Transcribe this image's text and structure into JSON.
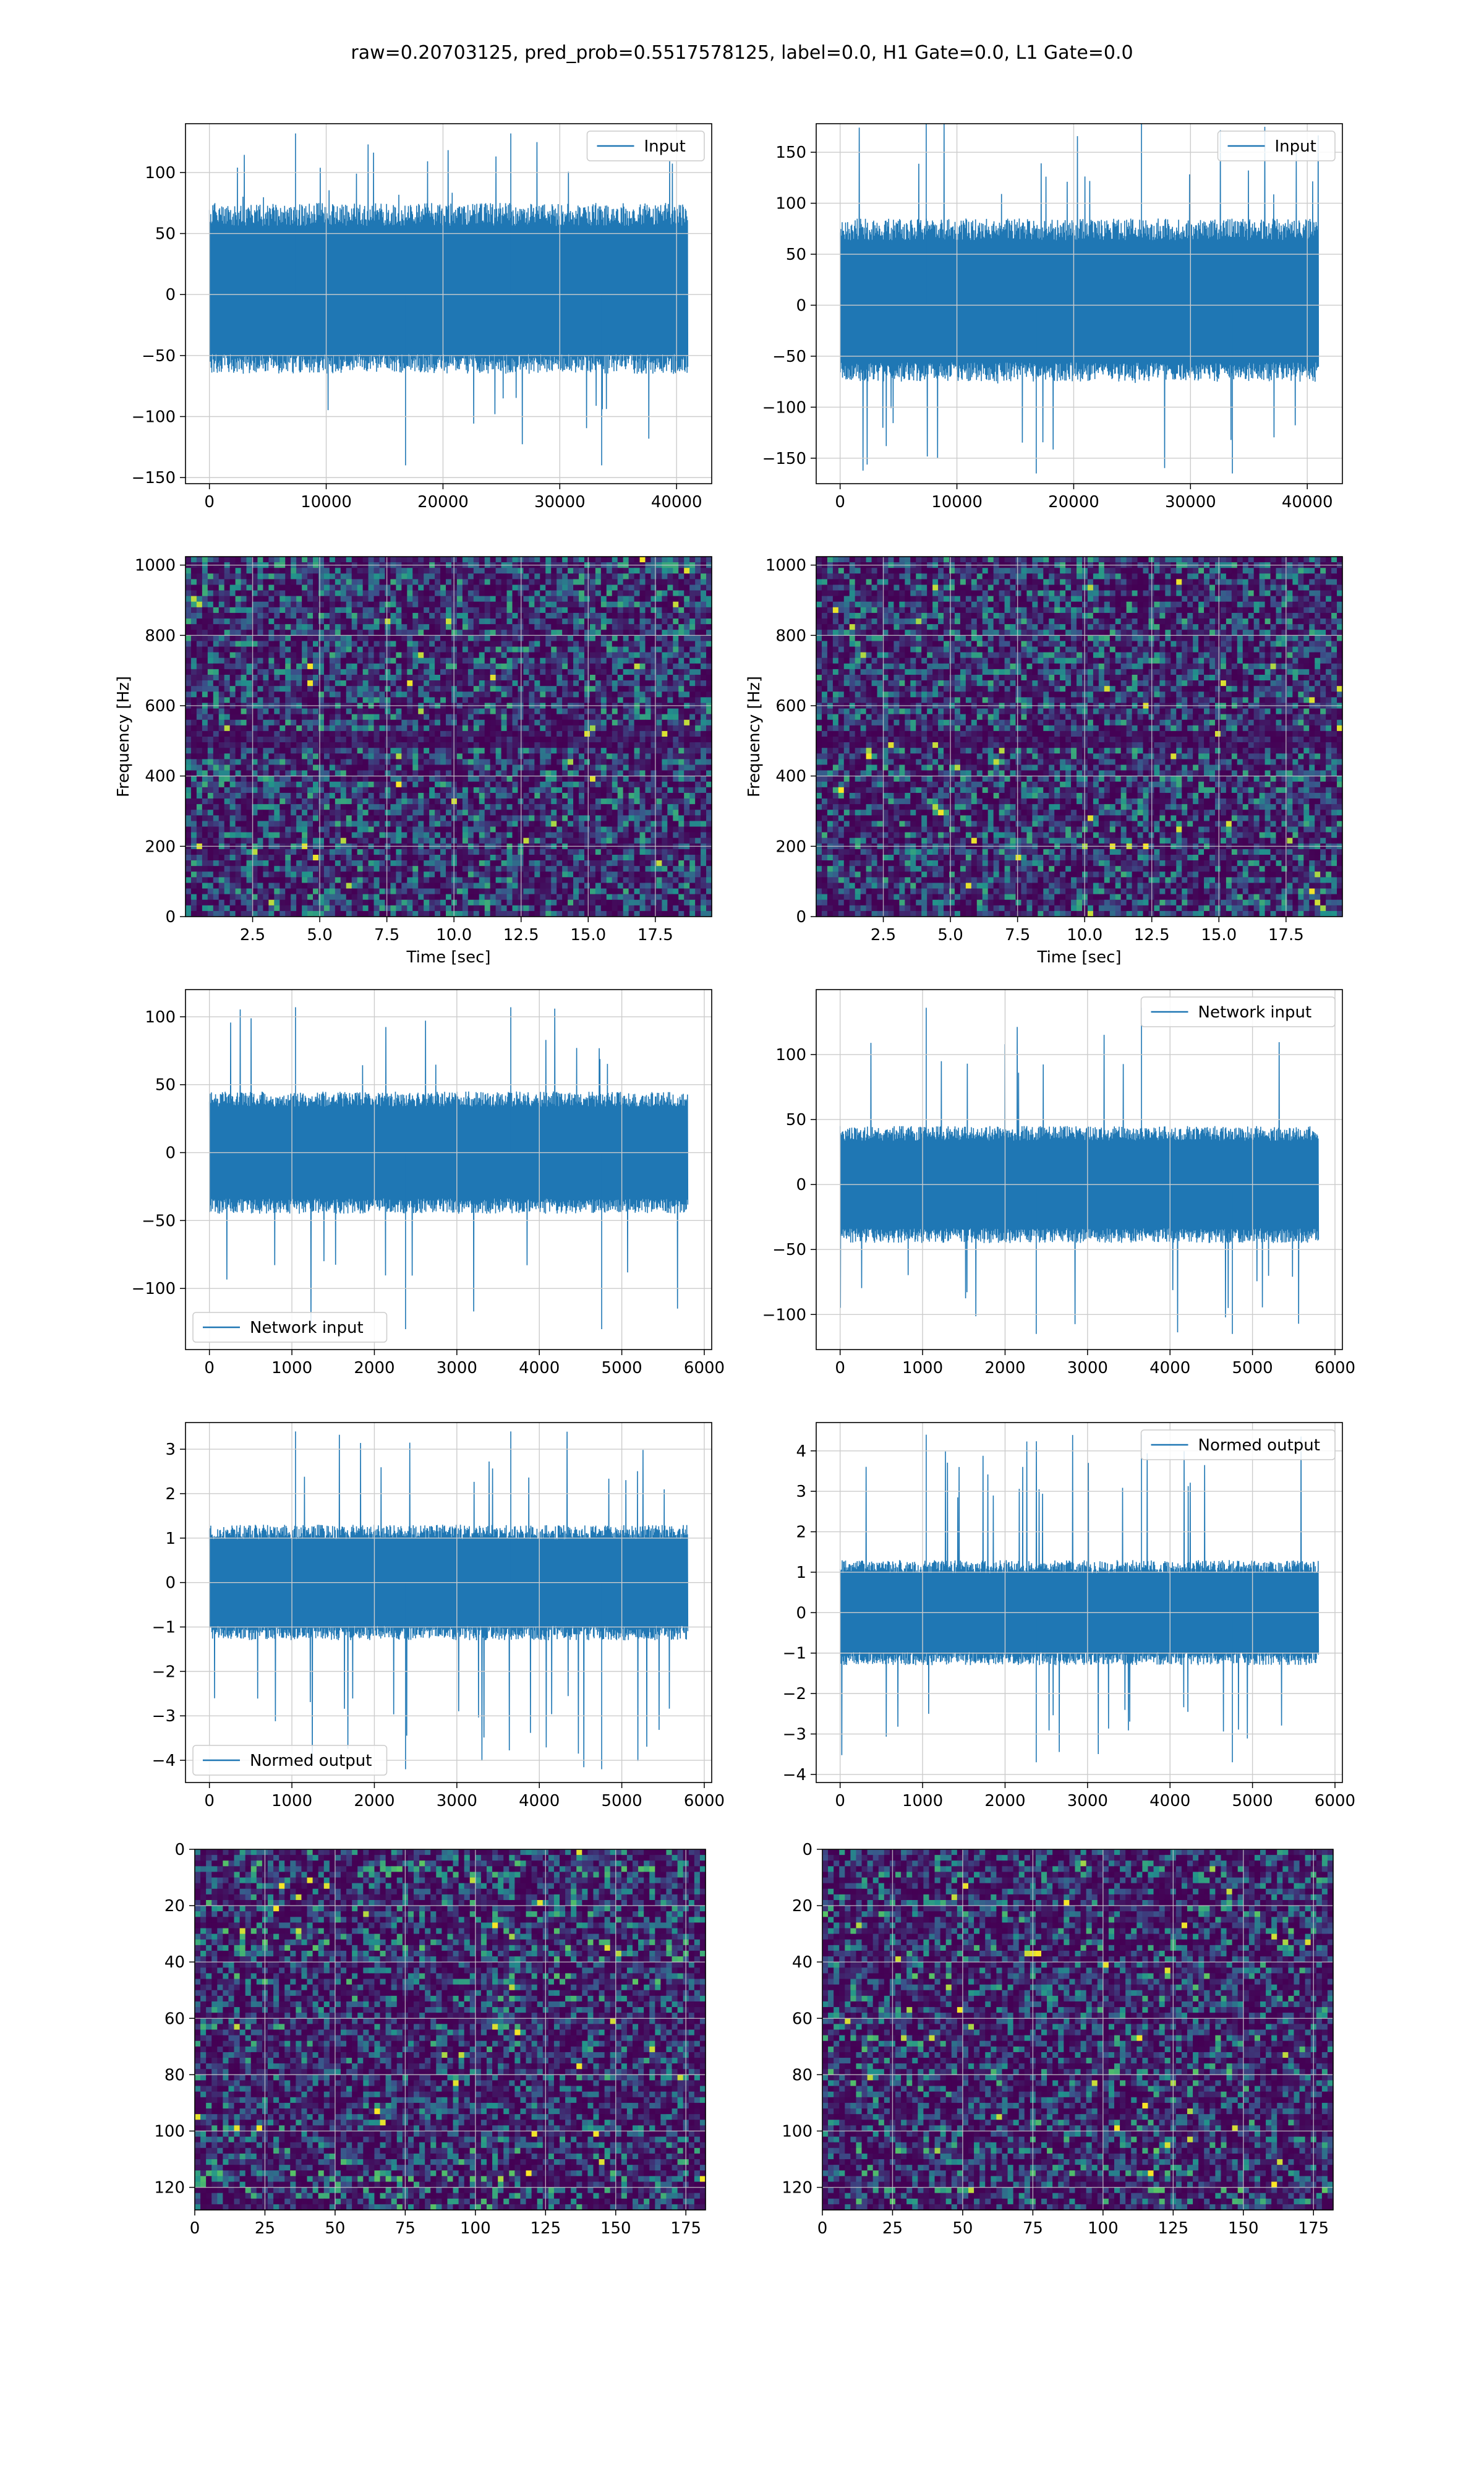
{
  "figure_title": "raw=0.20703125, pred_prob=0.5517578125, label=0.0, H1 Gate=0.0, L1 Gate=0.0",
  "colors": {
    "line": "#1f77b4",
    "grid": "#cccccc",
    "viridis_low": "#440154",
    "viridis_mid": "#21918c",
    "viridis_high": "#fde725"
  },
  "chart_data": [
    {
      "id": "p1",
      "type": "line",
      "series": [
        {
          "name": "Input"
        }
      ],
      "xlim": [
        -2048,
        43008
      ],
      "ylim": [
        -155,
        140
      ],
      "xticks": [
        0,
        10000,
        20000,
        30000,
        40000
      ],
      "yticks": [
        -150,
        -100,
        -50,
        0,
        50,
        100
      ],
      "envelope": {
        "x_start": 0,
        "x_end": 40960,
        "core_band": [
          -65,
          75
        ],
        "spike_low": -140,
        "spike_high": 132
      },
      "legend_loc": "upper right",
      "grid": true
    },
    {
      "id": "p2",
      "type": "line",
      "series": [
        {
          "name": "Input"
        }
      ],
      "xlim": [
        -2048,
        43008
      ],
      "ylim": [
        -175,
        178
      ],
      "xticks": [
        0,
        10000,
        20000,
        30000,
        40000
      ],
      "yticks": [
        -150,
        -100,
        -50,
        0,
        50,
        100,
        150
      ],
      "envelope": {
        "x_start": 0,
        "x_end": 40960,
        "core_band": [
          -75,
          85
        ],
        "spike_low": -165,
        "spike_high": 178
      },
      "legend_loc": "upper right",
      "grid": true
    },
    {
      "id": "p3",
      "type": "heatmap",
      "xlabel": "Time [sec]",
      "ylabel": "Frequency [Hz]",
      "xlim": [
        0.0,
        19.6
      ],
      "ylim": [
        0,
        1024
      ],
      "xticks": [
        "2.5",
        "5.0",
        "7.5",
        "10.0",
        "12.5",
        "15.0",
        "17.5"
      ],
      "yticks": [
        0,
        200,
        400,
        600,
        800,
        1000
      ],
      "grid": true
    },
    {
      "id": "p4",
      "type": "heatmap",
      "xlabel": "Time [sec]",
      "ylabel": "Frequency [Hz]",
      "xlim": [
        0.0,
        19.6
      ],
      "ylim": [
        0,
        1024
      ],
      "xticks": [
        "2.5",
        "5.0",
        "7.5",
        "10.0",
        "12.5",
        "15.0",
        "17.5"
      ],
      "yticks": [
        0,
        200,
        400,
        600,
        800,
        1000
      ],
      "grid": true
    },
    {
      "id": "p5",
      "type": "line",
      "series": [
        {
          "name": "Network input"
        }
      ],
      "xlim": [
        -290,
        6090
      ],
      "ylim": [
        -145,
        120
      ],
      "xticks": [
        0,
        1000,
        2000,
        3000,
        4000,
        5000,
        6000
      ],
      "yticks": [
        -100,
        -50,
        0,
        50,
        100
      ],
      "envelope": {
        "x_start": 0,
        "x_end": 5800,
        "core_band": [
          -45,
          45
        ],
        "spike_low": -130,
        "spike_high": 107
      },
      "legend_loc": "lower left",
      "grid": true
    },
    {
      "id": "p6",
      "type": "line",
      "series": [
        {
          "name": "Network input"
        }
      ],
      "xlim": [
        -290,
        6090
      ],
      "ylim": [
        -127,
        150
      ],
      "xticks": [
        0,
        1000,
        2000,
        3000,
        4000,
        5000,
        6000
      ],
      "yticks": [
        -100,
        -50,
        0,
        50,
        100
      ],
      "envelope": {
        "x_start": 0,
        "x_end": 5800,
        "core_band": [
          -45,
          45
        ],
        "spike_low": -115,
        "spike_high": 136
      },
      "legend_loc": "upper right",
      "grid": true
    },
    {
      "id": "p7",
      "type": "line",
      "series": [
        {
          "name": "Normed output"
        }
      ],
      "xlim": [
        -290,
        6090
      ],
      "ylim": [
        -4.5,
        3.6
      ],
      "xticks": [
        0,
        1000,
        2000,
        3000,
        4000,
        5000,
        6000
      ],
      "yticks": [
        -4,
        -3,
        -2,
        -1,
        0,
        1,
        2,
        3
      ],
      "envelope": {
        "x_start": 0,
        "x_end": 5800,
        "core_band": [
          -1.3,
          1.3
        ],
        "spike_low": -4.2,
        "spike_high": 3.4
      },
      "legend_loc": "lower left",
      "grid": true
    },
    {
      "id": "p8",
      "type": "line",
      "series": [
        {
          "name": "Normed output"
        }
      ],
      "xlim": [
        -290,
        6090
      ],
      "ylim": [
        -4.2,
        4.7
      ],
      "xticks": [
        0,
        1000,
        2000,
        3000,
        4000,
        5000,
        6000
      ],
      "yticks": [
        -4,
        -3,
        -2,
        -1,
        0,
        1,
        2,
        3,
        4
      ],
      "envelope": {
        "x_start": 0,
        "x_end": 5800,
        "core_band": [
          -1.3,
          1.3
        ],
        "spike_low": -3.7,
        "spike_high": 4.4
      },
      "legend_loc": "upper right",
      "grid": true
    },
    {
      "id": "p9",
      "type": "heatmap",
      "xlim": [
        0,
        182
      ],
      "ylim": [
        128,
        0
      ],
      "xticks": [
        0,
        25,
        50,
        75,
        100,
        125,
        150,
        175
      ],
      "yticks": [
        0,
        20,
        40,
        60,
        80,
        100,
        120
      ],
      "grid": true
    },
    {
      "id": "p10",
      "type": "heatmap",
      "xlim": [
        0,
        182
      ],
      "ylim": [
        128,
        0
      ],
      "xticks": [
        0,
        25,
        50,
        75,
        100,
        125,
        150,
        175
      ],
      "yticks": [
        0,
        20,
        40,
        60,
        80,
        100,
        120
      ],
      "grid": true
    }
  ]
}
